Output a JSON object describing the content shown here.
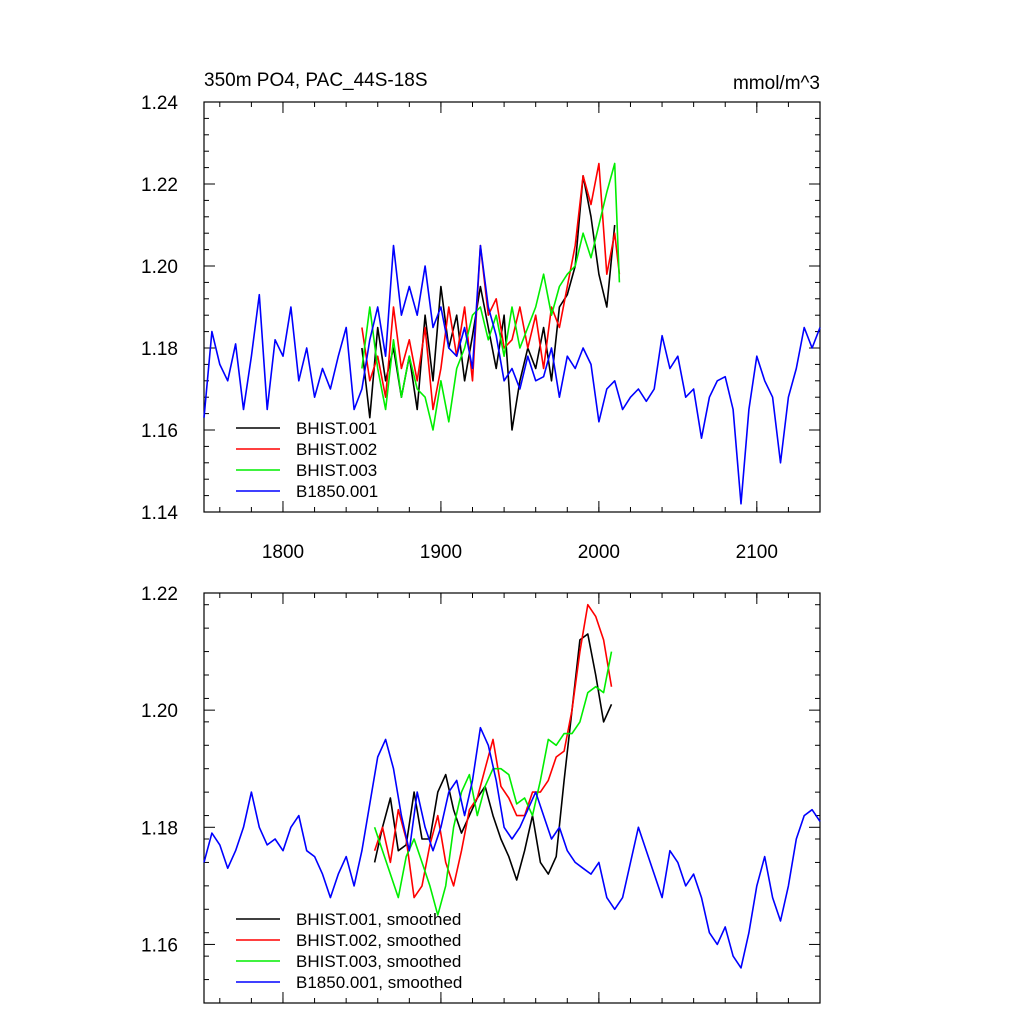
{
  "chart_data": [
    {
      "type": "line",
      "title": "350m PO4, PAC_44S-18S",
      "units": "mmol/m^3",
      "xlim": [
        1750,
        2140
      ],
      "ylim": [
        1.14,
        1.24
      ],
      "xticks": [
        1800,
        1900,
        2000,
        2100
      ],
      "yticks": [
        1.14,
        1.16,
        1.18,
        1.2,
        1.22,
        1.24
      ],
      "yticks_label": [
        "1.14",
        "1.16",
        "1.18",
        "1.20",
        "1.22",
        "1.24"
      ],
      "legend_position": "bottom-left",
      "series": [
        {
          "name": "BHIST.001",
          "color": "#000000",
          "x": [
            1850,
            1855,
            1860,
            1865,
            1870,
            1875,
            1880,
            1885,
            1890,
            1895,
            1900,
            1905,
            1910,
            1915,
            1920,
            1925,
            1930,
            1935,
            1940,
            1945,
            1950,
            1955,
            1960,
            1965,
            1970,
            1975,
            1980,
            1985,
            1990,
            1995,
            2000,
            2005,
            2010
          ],
          "y": [
            1.18,
            1.163,
            1.185,
            1.172,
            1.18,
            1.168,
            1.178,
            1.165,
            1.188,
            1.172,
            1.195,
            1.18,
            1.188,
            1.172,
            1.183,
            1.195,
            1.185,
            1.175,
            1.188,
            1.16,
            1.172,
            1.18,
            1.175,
            1.185,
            1.172,
            1.19,
            1.193,
            1.2,
            1.222,
            1.212,
            1.198,
            1.19,
            1.21
          ]
        },
        {
          "name": "BHIST.002",
          "color": "#ff0000",
          "x": [
            1850,
            1855,
            1860,
            1865,
            1870,
            1875,
            1880,
            1885,
            1890,
            1895,
            1900,
            1905,
            1910,
            1915,
            1920,
            1925,
            1930,
            1935,
            1940,
            1945,
            1950,
            1955,
            1960,
            1965,
            1970,
            1975,
            1980,
            1985,
            1990,
            1995,
            2000,
            2005,
            2010,
            2013
          ],
          "y": [
            1.185,
            1.172,
            1.178,
            1.168,
            1.19,
            1.175,
            1.182,
            1.172,
            1.185,
            1.165,
            1.175,
            1.19,
            1.178,
            1.19,
            1.172,
            1.205,
            1.188,
            1.192,
            1.18,
            1.182,
            1.19,
            1.18,
            1.188,
            1.175,
            1.19,
            1.185,
            1.195,
            1.205,
            1.222,
            1.215,
            1.225,
            1.198,
            1.208,
            1.198
          ]
        },
        {
          "name": "BHIST.003",
          "color": "#00ee00",
          "x": [
            1850,
            1855,
            1860,
            1865,
            1870,
            1875,
            1880,
            1885,
            1890,
            1895,
            1900,
            1905,
            1910,
            1915,
            1920,
            1925,
            1930,
            1935,
            1940,
            1945,
            1950,
            1955,
            1960,
            1965,
            1970,
            1975,
            1980,
            1985,
            1990,
            1995,
            2000,
            2005,
            2010,
            2013
          ],
          "y": [
            1.175,
            1.19,
            1.175,
            1.165,
            1.182,
            1.168,
            1.178,
            1.17,
            1.168,
            1.16,
            1.172,
            1.162,
            1.175,
            1.18,
            1.188,
            1.19,
            1.182,
            1.188,
            1.178,
            1.19,
            1.18,
            1.185,
            1.19,
            1.198,
            1.188,
            1.195,
            1.198,
            1.2,
            1.208,
            1.202,
            1.21,
            1.218,
            1.225,
            1.196
          ]
        },
        {
          "name": "B1850.001",
          "color": "#0000ff",
          "x": [
            1750,
            1755,
            1760,
            1765,
            1770,
            1775,
            1780,
            1785,
            1790,
            1795,
            1800,
            1805,
            1810,
            1815,
            1820,
            1825,
            1830,
            1835,
            1840,
            1845,
            1850,
            1855,
            1860,
            1865,
            1870,
            1875,
            1880,
            1885,
            1890,
            1895,
            1900,
            1905,
            1910,
            1915,
            1920,
            1925,
            1930,
            1935,
            1940,
            1945,
            1950,
            1955,
            1960,
            1965,
            1970,
            1975,
            1980,
            1985,
            1990,
            1995,
            2000,
            2005,
            2010,
            2015,
            2020,
            2025,
            2030,
            2035,
            2040,
            2045,
            2050,
            2055,
            2060,
            2065,
            2070,
            2075,
            2080,
            2085,
            2090,
            2095,
            2100,
            2105,
            2110,
            2115,
            2120,
            2125,
            2130,
            2135,
            2140
          ],
          "y": [
            1.163,
            1.184,
            1.176,
            1.172,
            1.181,
            1.165,
            1.178,
            1.193,
            1.165,
            1.182,
            1.178,
            1.19,
            1.172,
            1.18,
            1.168,
            1.175,
            1.17,
            1.178,
            1.185,
            1.165,
            1.17,
            1.182,
            1.19,
            1.178,
            1.205,
            1.188,
            1.195,
            1.188,
            1.2,
            1.185,
            1.19,
            1.18,
            1.178,
            1.185,
            1.175,
            1.205,
            1.19,
            1.183,
            1.172,
            1.175,
            1.17,
            1.178,
            1.172,
            1.173,
            1.18,
            1.168,
            1.178,
            1.175,
            1.18,
            1.176,
            1.162,
            1.17,
            1.172,
            1.165,
            1.168,
            1.17,
            1.167,
            1.17,
            1.183,
            1.175,
            1.178,
            1.168,
            1.17,
            1.158,
            1.168,
            1.172,
            1.173,
            1.165,
            1.142,
            1.165,
            1.178,
            1.172,
            1.168,
            1.152,
            1.168,
            1.175,
            1.185,
            1.18,
            1.185
          ]
        }
      ]
    },
    {
      "type": "line",
      "title": "",
      "xlim": [
        1750,
        2140
      ],
      "ylim": [
        1.15,
        1.22
      ],
      "xticks": [
        1800,
        1900,
        2000,
        2100
      ],
      "yticks": [
        1.16,
        1.18,
        1.2,
        1.22
      ],
      "yticks_label": [
        "1.16",
        "1.18",
        "1.20",
        "1.22"
      ],
      "legend_position": "bottom-left",
      "series": [
        {
          "name": "BHIST.001, smoothed",
          "color": "#000000",
          "x": [
            1858,
            1863,
            1868,
            1873,
            1878,
            1883,
            1888,
            1893,
            1898,
            1903,
            1908,
            1913,
            1918,
            1923,
            1928,
            1933,
            1938,
            1943,
            1948,
            1953,
            1958,
            1963,
            1968,
            1973,
            1978,
            1983,
            1988,
            1993,
            1998,
            2003,
            2008
          ],
          "y": [
            1.174,
            1.18,
            1.185,
            1.176,
            1.177,
            1.186,
            1.178,
            1.178,
            1.186,
            1.189,
            1.183,
            1.179,
            1.182,
            1.185,
            1.187,
            1.182,
            1.178,
            1.175,
            1.171,
            1.176,
            1.182,
            1.174,
            1.172,
            1.175,
            1.188,
            1.2,
            1.212,
            1.213,
            1.206,
            1.198,
            1.201
          ]
        },
        {
          "name": "BHIST.002, smoothed",
          "color": "#ff0000",
          "x": [
            1858,
            1863,
            1868,
            1873,
            1878,
            1883,
            1888,
            1893,
            1898,
            1903,
            1908,
            1913,
            1918,
            1923,
            1928,
            1933,
            1938,
            1943,
            1948,
            1953,
            1958,
            1963,
            1968,
            1973,
            1978,
            1983,
            1988,
            1993,
            1998,
            2003,
            2008
          ],
          "y": [
            1.176,
            1.18,
            1.174,
            1.183,
            1.178,
            1.168,
            1.17,
            1.177,
            1.182,
            1.174,
            1.17,
            1.176,
            1.183,
            1.185,
            1.19,
            1.195,
            1.187,
            1.185,
            1.182,
            1.182,
            1.186,
            1.186,
            1.188,
            1.192,
            1.193,
            1.2,
            1.21,
            1.218,
            1.216,
            1.212,
            1.204
          ]
        },
        {
          "name": "BHIST.003, smoothed",
          "color": "#00ee00",
          "x": [
            1858,
            1863,
            1868,
            1873,
            1878,
            1883,
            1888,
            1893,
            1898,
            1903,
            1908,
            1913,
            1918,
            1923,
            1928,
            1933,
            1938,
            1943,
            1948,
            1953,
            1958,
            1963,
            1968,
            1973,
            1978,
            1983,
            1988,
            1993,
            1998,
            2003,
            2008
          ],
          "y": [
            1.18,
            1.176,
            1.172,
            1.168,
            1.175,
            1.178,
            1.174,
            1.17,
            1.165,
            1.17,
            1.18,
            1.186,
            1.189,
            1.182,
            1.187,
            1.19,
            1.19,
            1.189,
            1.184,
            1.185,
            1.182,
            1.188,
            1.195,
            1.194,
            1.196,
            1.196,
            1.198,
            1.203,
            1.204,
            1.203,
            1.21
          ]
        },
        {
          "name": "B1850.001, smoothed",
          "color": "#0000ff",
          "x": [
            1750,
            1755,
            1760,
            1765,
            1770,
            1775,
            1780,
            1785,
            1790,
            1795,
            1800,
            1805,
            1810,
            1815,
            1820,
            1825,
            1830,
            1835,
            1840,
            1845,
            1850,
            1855,
            1860,
            1865,
            1870,
            1875,
            1880,
            1885,
            1890,
            1895,
            1900,
            1905,
            1910,
            1915,
            1920,
            1925,
            1930,
            1935,
            1940,
            1945,
            1950,
            1955,
            1960,
            1965,
            1970,
            1975,
            1980,
            1985,
            1990,
            1995,
            2000,
            2005,
            2010,
            2015,
            2020,
            2025,
            2030,
            2035,
            2040,
            2045,
            2050,
            2055,
            2060,
            2065,
            2070,
            2075,
            2080,
            2085,
            2090,
            2095,
            2100,
            2105,
            2110,
            2115,
            2120,
            2125,
            2130,
            2135,
            2140
          ],
          "y": [
            1.174,
            1.179,
            1.177,
            1.173,
            1.176,
            1.18,
            1.186,
            1.18,
            1.177,
            1.178,
            1.176,
            1.18,
            1.182,
            1.176,
            1.175,
            1.172,
            1.168,
            1.172,
            1.175,
            1.17,
            1.176,
            1.184,
            1.192,
            1.195,
            1.19,
            1.182,
            1.176,
            1.186,
            1.18,
            1.176,
            1.18,
            1.186,
            1.188,
            1.182,
            1.188,
            1.197,
            1.194,
            1.188,
            1.18,
            1.178,
            1.18,
            1.183,
            1.186,
            1.182,
            1.178,
            1.18,
            1.176,
            1.174,
            1.173,
            1.172,
            1.174,
            1.168,
            1.166,
            1.168,
            1.174,
            1.18,
            1.176,
            1.172,
            1.168,
            1.176,
            1.174,
            1.17,
            1.172,
            1.168,
            1.162,
            1.16,
            1.163,
            1.158,
            1.156,
            1.162,
            1.17,
            1.175,
            1.168,
            1.164,
            1.17,
            1.178,
            1.182,
            1.183,
            1.181
          ]
        }
      ]
    }
  ]
}
